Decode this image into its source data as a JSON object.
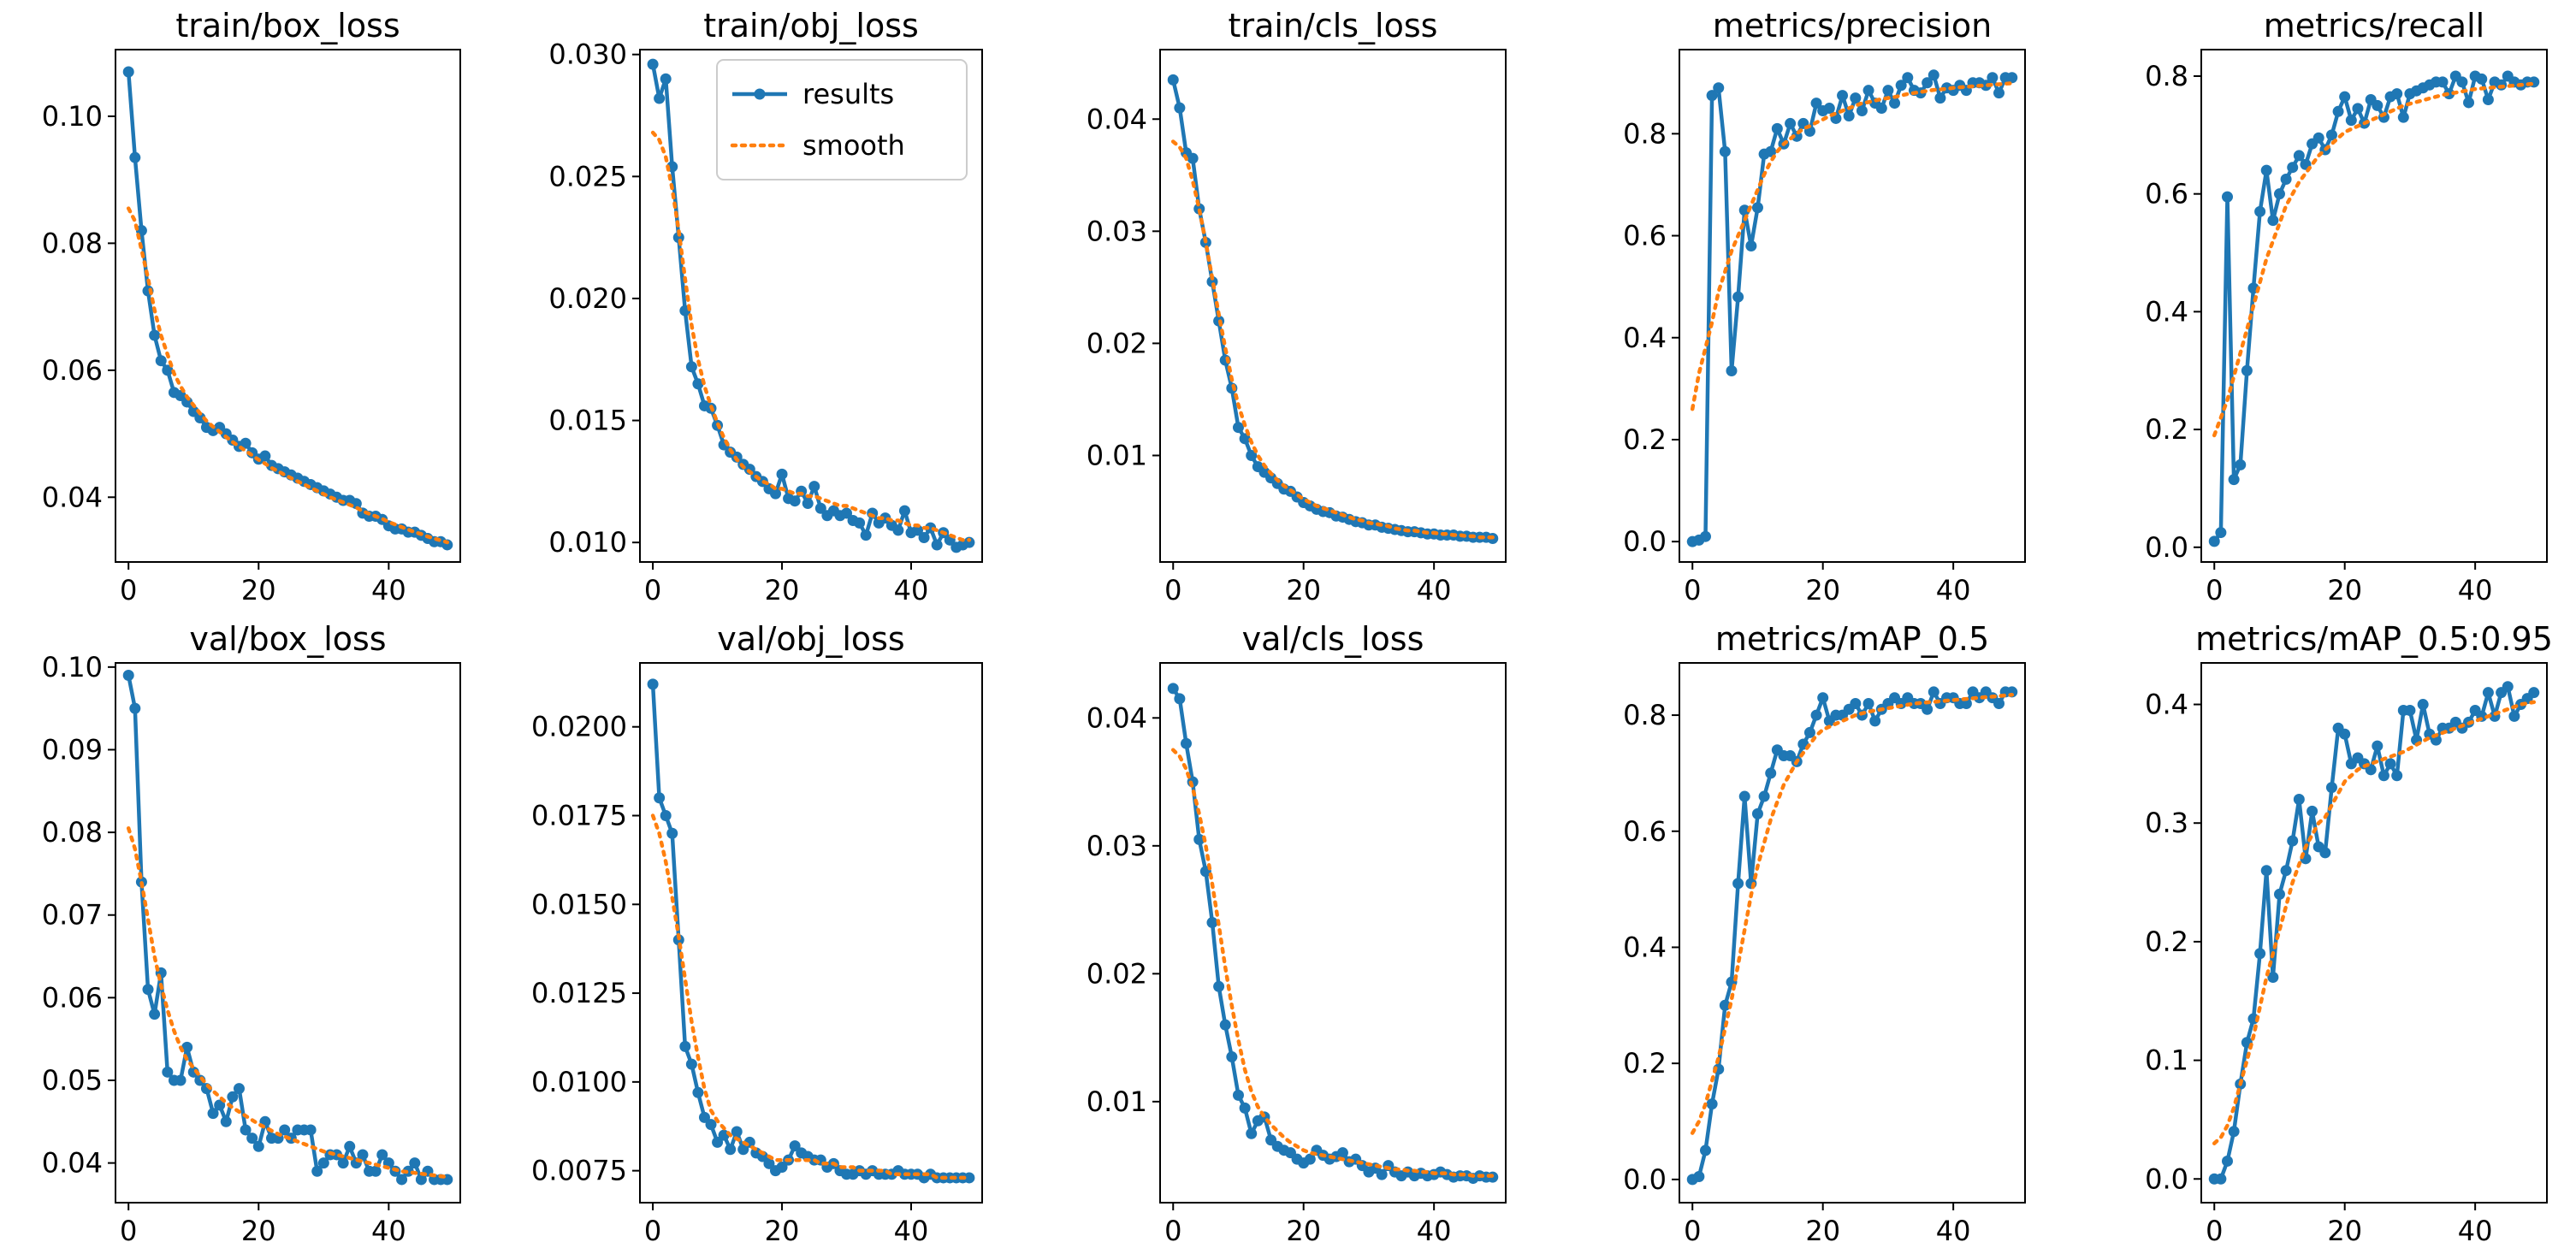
{
  "legend": {
    "results": "results",
    "smooth": "smooth"
  },
  "colors": {
    "results": "#1f77b4",
    "smooth": "#ff7f0e",
    "axes": "#000000",
    "background": "#ffffff"
  },
  "chart_data": [
    {
      "type": "line",
      "title": "train/box_loss",
      "xlim": [
        -2,
        51
      ],
      "ylim": [
        0.0298,
        0.1105
      ],
      "xticks": [
        "0",
        "20",
        "40"
      ],
      "yticks": [
        "0.04",
        "0.06",
        "0.08",
        "0.10"
      ],
      "results": [
        0.107,
        0.0935,
        0.082,
        0.0725,
        0.0655,
        0.0615,
        0.06,
        0.0565,
        0.056,
        0.055,
        0.0535,
        0.0525,
        0.051,
        0.0505,
        0.051,
        0.05,
        0.049,
        0.048,
        0.0485,
        0.047,
        0.046,
        0.0465,
        0.045,
        0.0445,
        0.044,
        0.0435,
        0.043,
        0.0425,
        0.042,
        0.0415,
        0.041,
        0.0405,
        0.04,
        0.0395,
        0.0395,
        0.039,
        0.0375,
        0.037,
        0.037,
        0.0365,
        0.0355,
        0.035,
        0.035,
        0.0345,
        0.0345,
        0.034,
        0.0335,
        0.033,
        0.033,
        0.0325
      ],
      "smooth": [
        0.0855,
        0.0835,
        0.079,
        0.0745,
        0.0695,
        0.0655,
        0.0625,
        0.0595,
        0.0575,
        0.0558,
        0.0545,
        0.0532,
        0.052,
        0.0511,
        0.0503,
        0.0495,
        0.0487,
        0.048,
        0.0473,
        0.0466,
        0.0459,
        0.0453,
        0.0446,
        0.0441,
        0.0435,
        0.043,
        0.0425,
        0.042,
        0.0415,
        0.041,
        0.0405,
        0.04,
        0.0396,
        0.0392,
        0.0388,
        0.0384,
        0.0378,
        0.0374,
        0.037,
        0.0366,
        0.0361,
        0.0357,
        0.0353,
        0.0349,
        0.0345,
        0.0342,
        0.0338,
        0.0335,
        0.0332,
        0.0329
      ]
    },
    {
      "type": "line",
      "title": "train/obj_loss",
      "xlim": [
        -2,
        51
      ],
      "ylim": [
        0.0092,
        0.0302
      ],
      "xticks": [
        "0",
        "20",
        "40"
      ],
      "yticks": [
        "0.010",
        "0.015",
        "0.020",
        "0.025",
        "0.030"
      ],
      "results": [
        0.0296,
        0.0282,
        0.029,
        0.0254,
        0.0225,
        0.0195,
        0.0172,
        0.0165,
        0.0156,
        0.0155,
        0.0148,
        0.014,
        0.0137,
        0.0135,
        0.0132,
        0.013,
        0.0127,
        0.0125,
        0.0122,
        0.012,
        0.0128,
        0.0118,
        0.0117,
        0.0121,
        0.0116,
        0.0123,
        0.0114,
        0.0111,
        0.0113,
        0.0111,
        0.0112,
        0.0109,
        0.0108,
        0.0103,
        0.0112,
        0.0108,
        0.011,
        0.0107,
        0.0105,
        0.0113,
        0.0104,
        0.0105,
        0.0102,
        0.0106,
        0.0099,
        0.0104,
        0.0101,
        0.0098,
        0.0099,
        0.01
      ],
      "smooth": [
        0.0268,
        0.0265,
        0.0258,
        0.0245,
        0.0228,
        0.0208,
        0.0189,
        0.0175,
        0.0164,
        0.0156,
        0.0149,
        0.0143,
        0.0138,
        0.0134,
        0.0131,
        0.0129,
        0.0127,
        0.0125,
        0.0124,
        0.0122,
        0.0122,
        0.0121,
        0.012,
        0.012,
        0.0119,
        0.0119,
        0.0118,
        0.0117,
        0.0116,
        0.0115,
        0.0115,
        0.0114,
        0.0113,
        0.0112,
        0.0111,
        0.011,
        0.011,
        0.0109,
        0.0109,
        0.0108,
        0.0107,
        0.0107,
        0.0106,
        0.0106,
        0.0105,
        0.0104,
        0.0103,
        0.0102,
        0.0101,
        0.0101
      ]
    },
    {
      "type": "line",
      "title": "train/cls_loss",
      "xlim": [
        -2,
        51
      ],
      "ylim": [
        0.0005,
        0.0462
      ],
      "xticks": [
        "0",
        "20",
        "40"
      ],
      "yticks": [
        "0.01",
        "0.02",
        "0.03",
        "0.04"
      ],
      "results": [
        0.0435,
        0.041,
        0.037,
        0.0365,
        0.032,
        0.029,
        0.0255,
        0.022,
        0.0185,
        0.016,
        0.0125,
        0.0115,
        0.01,
        0.009,
        0.0085,
        0.008,
        0.0075,
        0.007,
        0.0068,
        0.0063,
        0.0058,
        0.0055,
        0.0052,
        0.005,
        0.0049,
        0.0046,
        0.0045,
        0.0043,
        0.0041,
        0.004,
        0.0038,
        0.0038,
        0.0036,
        0.0035,
        0.0034,
        0.0033,
        0.0032,
        0.0032,
        0.0031,
        0.003,
        0.003,
        0.0029,
        0.0029,
        0.0029,
        0.0028,
        0.0028,
        0.0027,
        0.0027,
        0.0027,
        0.0026
      ],
      "smooth": [
        0.038,
        0.0375,
        0.0365,
        0.0345,
        0.032,
        0.029,
        0.0258,
        0.0226,
        0.0196,
        0.0168,
        0.0145,
        0.0127,
        0.0112,
        0.01,
        0.0091,
        0.0084,
        0.0078,
        0.0073,
        0.0069,
        0.0065,
        0.0061,
        0.0058,
        0.0055,
        0.0053,
        0.0051,
        0.0049,
        0.0047,
        0.0045,
        0.0043,
        0.0042,
        0.004,
        0.0039,
        0.0038,
        0.0037,
        0.0035,
        0.0034,
        0.0033,
        0.0033,
        0.0032,
        0.0031,
        0.0031,
        0.003,
        0.003,
        0.0029,
        0.0029,
        0.0028,
        0.0028,
        0.0027,
        0.0027,
        0.0027
      ]
    },
    {
      "type": "line",
      "title": "metrics/precision",
      "xlim": [
        -2,
        51
      ],
      "ylim": [
        -0.04,
        0.965
      ],
      "xticks": [
        "0",
        "20",
        "40"
      ],
      "yticks": [
        "0.0",
        "0.2",
        "0.4",
        "0.6",
        "0.8"
      ],
      "results": [
        0.0,
        0.003,
        0.01,
        0.875,
        0.89,
        0.765,
        0.335,
        0.48,
        0.65,
        0.58,
        0.655,
        0.76,
        0.765,
        0.81,
        0.78,
        0.82,
        0.795,
        0.82,
        0.805,
        0.86,
        0.845,
        0.85,
        0.83,
        0.875,
        0.835,
        0.87,
        0.845,
        0.885,
        0.86,
        0.85,
        0.885,
        0.86,
        0.895,
        0.91,
        0.885,
        0.88,
        0.9,
        0.915,
        0.87,
        0.89,
        0.885,
        0.895,
        0.885,
        0.9,
        0.9,
        0.895,
        0.91,
        0.88,
        0.91,
        0.91
      ],
      "smooth": [
        0.26,
        0.33,
        0.38,
        0.43,
        0.49,
        0.53,
        0.57,
        0.6,
        0.63,
        0.66,
        0.69,
        0.72,
        0.745,
        0.765,
        0.78,
        0.79,
        0.8,
        0.81,
        0.815,
        0.822,
        0.828,
        0.835,
        0.84,
        0.845,
        0.85,
        0.855,
        0.86,
        0.862,
        0.865,
        0.868,
        0.87,
        0.872,
        0.875,
        0.878,
        0.88,
        0.882,
        0.884,
        0.886,
        0.887,
        0.888,
        0.89,
        0.891,
        0.892,
        0.893,
        0.894,
        0.895,
        0.896,
        0.897,
        0.898,
        0.899
      ]
    },
    {
      "type": "line",
      "title": "metrics/recall",
      "xlim": [
        -2,
        51
      ],
      "ylim": [
        -0.025,
        0.845
      ],
      "xticks": [
        "0",
        "20",
        "40"
      ],
      "yticks": [
        "0.0",
        "0.2",
        "0.4",
        "0.6",
        "0.8"
      ],
      "results": [
        0.01,
        0.025,
        0.595,
        0.115,
        0.14,
        0.3,
        0.44,
        0.57,
        0.64,
        0.555,
        0.6,
        0.625,
        0.645,
        0.665,
        0.65,
        0.685,
        0.695,
        0.675,
        0.7,
        0.74,
        0.765,
        0.725,
        0.745,
        0.72,
        0.76,
        0.75,
        0.73,
        0.765,
        0.77,
        0.73,
        0.77,
        0.775,
        0.78,
        0.785,
        0.79,
        0.79,
        0.77,
        0.8,
        0.79,
        0.755,
        0.8,
        0.795,
        0.76,
        0.79,
        0.785,
        0.8,
        0.79,
        0.785,
        0.79,
        0.79
      ],
      "smooth": [
        0.19,
        0.22,
        0.25,
        0.29,
        0.33,
        0.37,
        0.41,
        0.45,
        0.49,
        0.52,
        0.55,
        0.58,
        0.6,
        0.62,
        0.635,
        0.65,
        0.665,
        0.675,
        0.685,
        0.695,
        0.705,
        0.71,
        0.715,
        0.72,
        0.725,
        0.73,
        0.735,
        0.74,
        0.745,
        0.75,
        0.753,
        0.756,
        0.759,
        0.762,
        0.765,
        0.768,
        0.77,
        0.772,
        0.774,
        0.776,
        0.778,
        0.779,
        0.78,
        0.781,
        0.782,
        0.783,
        0.784,
        0.785,
        0.786,
        0.787
      ]
    },
    {
      "type": "line",
      "title": "val/box_loss",
      "xlim": [
        -2,
        51
      ],
      "ylim": [
        0.0352,
        0.1005
      ],
      "xticks": [
        "0",
        "20",
        "40"
      ],
      "yticks": [
        "0.04",
        "0.05",
        "0.06",
        "0.07",
        "0.08",
        "0.09",
        "0.10"
      ],
      "results": [
        0.099,
        0.095,
        0.074,
        0.061,
        0.058,
        0.063,
        0.051,
        0.05,
        0.05,
        0.054,
        0.051,
        0.05,
        0.049,
        0.046,
        0.047,
        0.045,
        0.048,
        0.049,
        0.044,
        0.043,
        0.042,
        0.045,
        0.043,
        0.043,
        0.044,
        0.043,
        0.044,
        0.044,
        0.044,
        0.039,
        0.04,
        0.041,
        0.041,
        0.04,
        0.042,
        0.04,
        0.041,
        0.039,
        0.039,
        0.041,
        0.04,
        0.039,
        0.038,
        0.039,
        0.04,
        0.038,
        0.039,
        0.038,
        0.038,
        0.038
      ],
      "smooth": [
        0.0805,
        0.078,
        0.074,
        0.0695,
        0.065,
        0.0615,
        0.0585,
        0.056,
        0.054,
        0.0525,
        0.0515,
        0.0505,
        0.0495,
        0.0487,
        0.048,
        0.0473,
        0.0467,
        0.0462,
        0.0457,
        0.0452,
        0.0447,
        0.0443,
        0.0439,
        0.0435,
        0.0432,
        0.0429,
        0.0426,
        0.0423,
        0.042,
        0.0417,
        0.0414,
        0.0412,
        0.041,
        0.0408,
        0.0406,
        0.0404,
        0.0402,
        0.04,
        0.0398,
        0.0396,
        0.0394,
        0.0392,
        0.039,
        0.0389,
        0.0388,
        0.0387,
        0.0386,
        0.0385,
        0.0384,
        0.0383
      ]
    },
    {
      "type": "line",
      "title": "val/obj_loss",
      "xlim": [
        -2,
        51
      ],
      "ylim": [
        0.0066,
        0.0218
      ],
      "xticks": [
        "0",
        "20",
        "40"
      ],
      "yticks": [
        "0.0075",
        "0.0100",
        "0.0125",
        "0.0150",
        "0.0175",
        "0.0200"
      ],
      "results": [
        0.0212,
        0.018,
        0.0175,
        0.017,
        0.014,
        0.011,
        0.0105,
        0.0097,
        0.009,
        0.0088,
        0.0083,
        0.0085,
        0.0081,
        0.0086,
        0.0081,
        0.0083,
        0.008,
        0.0079,
        0.0077,
        0.0075,
        0.0076,
        0.0078,
        0.0082,
        0.008,
        0.0079,
        0.0078,
        0.0078,
        0.0076,
        0.0077,
        0.0075,
        0.0074,
        0.0074,
        0.0075,
        0.0074,
        0.0075,
        0.0074,
        0.0074,
        0.0074,
        0.0075,
        0.0074,
        0.0074,
        0.0074,
        0.0073,
        0.0074,
        0.0073,
        0.0073,
        0.0073,
        0.0073,
        0.0073,
        0.0073
      ],
      "smooth": [
        0.0175,
        0.017,
        0.0162,
        0.0152,
        0.0141,
        0.0129,
        0.0117,
        0.0107,
        0.0098,
        0.0092,
        0.0089,
        0.0087,
        0.0085,
        0.0084,
        0.0083,
        0.0082,
        0.0081,
        0.008,
        0.0079,
        0.0078,
        0.0078,
        0.0078,
        0.0078,
        0.0078,
        0.0078,
        0.0078,
        0.0077,
        0.0077,
        0.0077,
        0.0076,
        0.0076,
        0.0076,
        0.0075,
        0.0075,
        0.0075,
        0.0075,
        0.0075,
        0.0074,
        0.0074,
        0.0074,
        0.0074,
        0.0074,
        0.0074,
        0.0074,
        0.0073,
        0.0073,
        0.0073,
        0.0073,
        0.0073,
        0.0073
      ]
    },
    {
      "type": "line",
      "title": "val/cls_loss",
      "xlim": [
        -2,
        51
      ],
      "ylim": [
        0.0021,
        0.0443
      ],
      "xticks": [
        "0",
        "20",
        "40"
      ],
      "yticks": [
        "0.01",
        "0.02",
        "0.03",
        "0.04"
      ],
      "results": [
        0.0423,
        0.0415,
        0.038,
        0.035,
        0.0305,
        0.028,
        0.024,
        0.019,
        0.016,
        0.0135,
        0.0105,
        0.0095,
        0.0075,
        0.0085,
        0.0088,
        0.007,
        0.0065,
        0.0062,
        0.006,
        0.0055,
        0.0052,
        0.0055,
        0.0062,
        0.0058,
        0.0055,
        0.0057,
        0.006,
        0.0053,
        0.0055,
        0.005,
        0.0045,
        0.0048,
        0.0043,
        0.005,
        0.0045,
        0.0042,
        0.0045,
        0.0042,
        0.0044,
        0.0042,
        0.0043,
        0.0045,
        0.0043,
        0.0041,
        0.0042,
        0.0042,
        0.004,
        0.0042,
        0.0041,
        0.0041
      ],
      "smooth": [
        0.0375,
        0.037,
        0.036,
        0.0345,
        0.0325,
        0.03,
        0.027,
        0.0238,
        0.0205,
        0.0175,
        0.0148,
        0.0125,
        0.0108,
        0.0096,
        0.0088,
        0.0082,
        0.0077,
        0.0072,
        0.0068,
        0.0065,
        0.0062,
        0.006,
        0.0059,
        0.0058,
        0.0057,
        0.0056,
        0.0055,
        0.0054,
        0.0053,
        0.0052,
        0.0051,
        0.005,
        0.0049,
        0.0048,
        0.0047,
        0.0047,
        0.0046,
        0.0046,
        0.0045,
        0.0045,
        0.0044,
        0.0044,
        0.0044,
        0.0043,
        0.0043,
        0.0043,
        0.0042,
        0.0042,
        0.0042,
        0.0042
      ]
    },
    {
      "type": "line",
      "title": "metrics/mAP_0.5",
      "xlim": [
        -2,
        51
      ],
      "ylim": [
        -0.04,
        0.89
      ],
      "xticks": [
        "0",
        "20",
        "40"
      ],
      "yticks": [
        "0.0",
        "0.2",
        "0.4",
        "0.6",
        "0.8"
      ],
      "results": [
        0.0,
        0.005,
        0.05,
        0.13,
        0.19,
        0.3,
        0.34,
        0.51,
        0.66,
        0.51,
        0.63,
        0.66,
        0.7,
        0.74,
        0.73,
        0.73,
        0.72,
        0.75,
        0.77,
        0.8,
        0.83,
        0.79,
        0.8,
        0.8,
        0.81,
        0.82,
        0.8,
        0.82,
        0.79,
        0.81,
        0.82,
        0.83,
        0.82,
        0.83,
        0.82,
        0.82,
        0.81,
        0.84,
        0.82,
        0.83,
        0.83,
        0.82,
        0.82,
        0.84,
        0.83,
        0.84,
        0.83,
        0.82,
        0.84,
        0.84
      ],
      "smooth": [
        0.08,
        0.1,
        0.13,
        0.17,
        0.21,
        0.26,
        0.31,
        0.37,
        0.43,
        0.49,
        0.54,
        0.58,
        0.62,
        0.65,
        0.68,
        0.7,
        0.72,
        0.735,
        0.75,
        0.765,
        0.775,
        0.78,
        0.785,
        0.79,
        0.795,
        0.8,
        0.803,
        0.806,
        0.808,
        0.81,
        0.812,
        0.814,
        0.816,
        0.818,
        0.82,
        0.821,
        0.822,
        0.823,
        0.824,
        0.825,
        0.826,
        0.827,
        0.828,
        0.829,
        0.83,
        0.831,
        0.832,
        0.833,
        0.834,
        0.835
      ]
    },
    {
      "type": "line",
      "title": "metrics/mAP_0.5:0.95",
      "xlim": [
        -2,
        51
      ],
      "ylim": [
        -0.02,
        0.435
      ],
      "xticks": [
        "0",
        "20",
        "40"
      ],
      "yticks": [
        "0.0",
        "0.1",
        "0.2",
        "0.3",
        "0.4"
      ],
      "results": [
        0.0,
        0.0,
        0.015,
        0.04,
        0.08,
        0.115,
        0.135,
        0.19,
        0.26,
        0.17,
        0.24,
        0.26,
        0.285,
        0.32,
        0.27,
        0.31,
        0.28,
        0.275,
        0.33,
        0.38,
        0.375,
        0.35,
        0.355,
        0.35,
        0.345,
        0.365,
        0.34,
        0.35,
        0.34,
        0.395,
        0.395,
        0.37,
        0.4,
        0.375,
        0.37,
        0.38,
        0.38,
        0.385,
        0.38,
        0.385,
        0.395,
        0.39,
        0.41,
        0.39,
        0.41,
        0.415,
        0.39,
        0.4,
        0.405,
        0.41
      ],
      "smooth": [
        0.03,
        0.035,
        0.045,
        0.06,
        0.08,
        0.1,
        0.12,
        0.145,
        0.17,
        0.19,
        0.21,
        0.23,
        0.25,
        0.265,
        0.28,
        0.29,
        0.3,
        0.305,
        0.315,
        0.325,
        0.335,
        0.34,
        0.345,
        0.348,
        0.35,
        0.352,
        0.354,
        0.356,
        0.358,
        0.36,
        0.363,
        0.366,
        0.369,
        0.372,
        0.374,
        0.376,
        0.378,
        0.38,
        0.382,
        0.384,
        0.386,
        0.388,
        0.39,
        0.392,
        0.394,
        0.396,
        0.398,
        0.4,
        0.401,
        0.402
      ]
    }
  ]
}
